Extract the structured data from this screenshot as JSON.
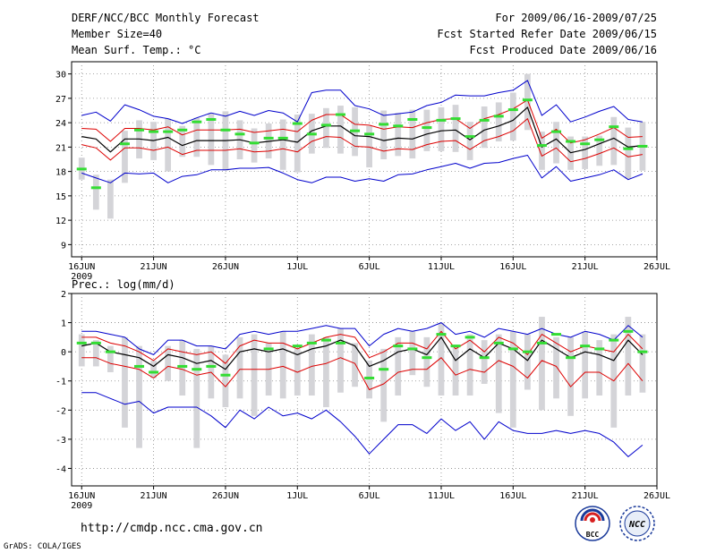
{
  "header": {
    "title": "DERF/NCC/BCC Monthly Forecast",
    "member_size": "Member Size=40",
    "variable": "Mean Surf. Temp.: °C",
    "for_range": "For 2009/06/16-2009/07/25",
    "fcst_started": "Fcst Started Refer Date 2009/06/15",
    "fcst_produced": "Fcst Produced Date 2009/06/16"
  },
  "footer": {
    "url": "http://cmdp.ncc.cma.gov.cn",
    "grads": "GrADS: COLA/IGES",
    "logo_bcc": "BCC",
    "logo_ncc": "NCC"
  },
  "colors": {
    "mean": "#000000",
    "spread": "#dd0000",
    "extremes": "#0000cc",
    "observed": "#33dd33",
    "box": "#d4d4d8",
    "grid": "#888888"
  },
  "chart_data": [
    {
      "type": "line",
      "title": "Mean Surf. Temp.: °C",
      "x": "days from 2009-06-16 (0..39)",
      "x_tick_labels": [
        "16JUN",
        "21JUN",
        "26JUN",
        "1JUL",
        "6JUL",
        "11JUL",
        "16JUL",
        "21JUL",
        "26JUL"
      ],
      "x_tick_days": [
        0,
        5,
        10,
        15,
        20,
        25,
        30,
        35,
        40
      ],
      "x_sub_label": "2009",
      "xlim": [
        -0.7,
        40
      ],
      "ylim": [
        7.5,
        31.5
      ],
      "y_ticks": [
        9,
        12,
        15,
        18,
        21,
        24,
        27,
        30
      ],
      "series": [
        {
          "name": "ensemble mean",
          "values": [
            22.3,
            22.0,
            20.4,
            22.0,
            22.0,
            21.8,
            22.2,
            21.2,
            21.8,
            21.8,
            21.8,
            21.9,
            21.5,
            21.7,
            21.9,
            21.6,
            23.0,
            23.6,
            23.6,
            22.4,
            22.3,
            21.8,
            22.1,
            22.0,
            22.6,
            23.0,
            23.1,
            21.9,
            23.1,
            23.6,
            24.3,
            25.9,
            21.0,
            22.0,
            20.3,
            20.7,
            21.4,
            22.1,
            21.0,
            21.2
          ]
        },
        {
          "name": "upper spread",
          "values": [
            23.3,
            23.2,
            21.7,
            23.3,
            23.3,
            23.1,
            23.5,
            22.5,
            23.1,
            23.1,
            23.1,
            23.2,
            22.8,
            23.0,
            23.2,
            22.9,
            24.3,
            25.0,
            25.0,
            23.8,
            23.7,
            23.2,
            23.5,
            23.4,
            24.0,
            24.4,
            24.5,
            23.3,
            24.5,
            25.0,
            25.7,
            26.8,
            22.1,
            23.2,
            21.5,
            21.9,
            22.6,
            23.4,
            22.2,
            22.3
          ]
        },
        {
          "name": "lower spread",
          "values": [
            21.3,
            20.9,
            19.4,
            20.9,
            20.9,
            20.6,
            21.0,
            20.1,
            20.6,
            20.6,
            20.6,
            20.8,
            20.4,
            20.5,
            20.8,
            20.4,
            21.7,
            22.3,
            22.2,
            21.1,
            21.0,
            20.5,
            20.8,
            20.7,
            21.3,
            21.7,
            21.8,
            20.7,
            21.8,
            22.3,
            23.0,
            24.5,
            19.9,
            20.9,
            19.2,
            19.6,
            20.2,
            20.9,
            19.8,
            20.1
          ]
        },
        {
          "name": "ensemble max",
          "values": [
            24.9,
            25.3,
            24.2,
            26.2,
            25.6,
            24.8,
            24.5,
            23.9,
            24.6,
            25.2,
            24.8,
            25.4,
            24.9,
            25.5,
            25.2,
            24.1,
            27.7,
            28.0,
            28.0,
            26.1,
            25.7,
            24.9,
            25.1,
            25.3,
            26.1,
            26.5,
            27.4,
            27.3,
            27.3,
            27.7,
            28.0,
            29.2,
            24.9,
            26.2,
            24.1,
            24.7,
            25.4,
            26.0,
            24.4,
            24.1
          ]
        },
        {
          "name": "ensemble min",
          "values": [
            17.8,
            17.2,
            16.6,
            17.8,
            17.7,
            17.8,
            16.6,
            17.4,
            17.6,
            18.2,
            18.2,
            18.4,
            18.4,
            18.5,
            17.8,
            17.0,
            16.6,
            17.3,
            17.3,
            16.8,
            17.1,
            16.8,
            17.6,
            17.7,
            18.2,
            18.6,
            19.0,
            18.4,
            19.0,
            19.1,
            19.6,
            20.0,
            17.2,
            18.6,
            16.8,
            17.2,
            17.6,
            18.2,
            17.0,
            17.7
          ]
        },
        {
          "name": "observed",
          "values": [
            18.3,
            16.0,
            null,
            21.4,
            23.1,
            22.9,
            22.9,
            23.1,
            24.1,
            24.4,
            23.1,
            22.6,
            21.5,
            22.1,
            22.1,
            23.9,
            22.6,
            23.7,
            25.0,
            23.0,
            22.6,
            23.8,
            23.6,
            24.4,
            23.4,
            24.3,
            24.5,
            22.3,
            24.3,
            24.8,
            25.6,
            26.8,
            21.2,
            22.9,
            21.7,
            21.4,
            21.9,
            23.5,
            20.8,
            21.1
          ]
        },
        {
          "name": "box top",
          "values": [
            19.7,
            17.6,
            17.0,
            23.0,
            24.3,
            24.1,
            24.5,
            23.6,
            24.6,
            25.2,
            25.4,
            24.3,
            23.3,
            23.9,
            24.4,
            25.0,
            25.1,
            25.8,
            26.1,
            25.9,
            23.6,
            25.5,
            25.2,
            25.6,
            25.6,
            25.9,
            26.2,
            24.1,
            26.0,
            26.5,
            27.7,
            30.0,
            22.9,
            24.1,
            22.3,
            22.3,
            22.4,
            24.7,
            23.4,
            24.1
          ]
        },
        {
          "name": "box bottom",
          "values": [
            17.0,
            13.3,
            12.2,
            16.6,
            19.6,
            19.4,
            18.0,
            19.8,
            19.8,
            18.8,
            18.1,
            19.5,
            19.1,
            19.6,
            18.2,
            17.9,
            20.2,
            20.9,
            20.2,
            19.9,
            18.5,
            19.5,
            19.9,
            19.6,
            20.5,
            20.5,
            20.4,
            19.4,
            20.9,
            21.7,
            21.8,
            23.1,
            18.2,
            19.0,
            18.2,
            18.3,
            18.7,
            18.8,
            17.1,
            18.1
          ]
        }
      ]
    },
    {
      "type": "line",
      "title": "Prec.: log(mm/d)",
      "x": "days from 2009-06-16 (0..39)",
      "x_tick_labels": [
        "16JUN",
        "21JUN",
        "26JUN",
        "1JUL",
        "6JUL",
        "11JUL",
        "16JUL",
        "21JUL",
        "26JUL"
      ],
      "x_tick_days": [
        0,
        5,
        10,
        15,
        20,
        25,
        30,
        35,
        40
      ],
      "x_sub_label": "2009",
      "xlim": [
        -0.7,
        40
      ],
      "ylim": [
        -4.6,
        2.0
      ],
      "y_ticks": [
        -4,
        -3,
        -2,
        -1,
        0,
        1,
        2
      ],
      "series": [
        {
          "name": "ensemble mean",
          "values": [
            0.2,
            0.3,
            0.0,
            -0.1,
            -0.2,
            -0.5,
            -0.1,
            -0.2,
            -0.4,
            -0.3,
            -0.6,
            0.0,
            0.1,
            0.0,
            0.1,
            -0.1,
            0.1,
            0.2,
            0.4,
            0.2,
            -0.5,
            -0.3,
            0.0,
            0.1,
            -0.1,
            0.5,
            -0.3,
            0.1,
            -0.2,
            0.3,
            0.1,
            -0.3,
            0.4,
            0.1,
            -0.2,
            0.0,
            -0.1,
            -0.3,
            0.4,
            -0.1
          ]
        },
        {
          "name": "upper spread",
          "values": [
            0.5,
            0.5,
            0.3,
            0.2,
            0.0,
            -0.3,
            0.1,
            0.0,
            -0.1,
            0.0,
            -0.4,
            0.2,
            0.4,
            0.3,
            0.3,
            0.1,
            0.3,
            0.5,
            0.6,
            0.5,
            -0.2,
            0.0,
            0.3,
            0.3,
            0.1,
            0.7,
            0.1,
            0.4,
            0.0,
            0.5,
            0.3,
            -0.1,
            0.6,
            0.3,
            0.0,
            0.2,
            0.1,
            0.0,
            0.6,
            0.1
          ]
        },
        {
          "name": "lower spread",
          "values": [
            -0.2,
            -0.2,
            -0.4,
            -0.5,
            -0.6,
            -0.9,
            -0.5,
            -0.6,
            -0.8,
            -0.7,
            -1.2,
            -0.6,
            -0.6,
            -0.6,
            -0.5,
            -0.7,
            -0.5,
            -0.4,
            -0.2,
            -0.4,
            -1.3,
            -1.1,
            -0.7,
            -0.6,
            -0.6,
            -0.2,
            -0.8,
            -0.6,
            -0.7,
            -0.3,
            -0.5,
            -0.9,
            -0.3,
            -0.5,
            -1.2,
            -0.7,
            -0.7,
            -1.0,
            -0.4,
            -1.0
          ]
        },
        {
          "name": "ensemble max",
          "values": [
            0.7,
            0.7,
            0.6,
            0.5,
            0.1,
            -0.1,
            0.4,
            0.4,
            0.2,
            0.2,
            0.1,
            0.6,
            0.7,
            0.6,
            0.7,
            0.7,
            0.8,
            0.9,
            0.8,
            0.8,
            0.2,
            0.6,
            0.8,
            0.7,
            0.8,
            1.0,
            0.6,
            0.7,
            0.5,
            0.8,
            0.7,
            0.6,
            0.8,
            0.6,
            0.5,
            0.7,
            0.6,
            0.4,
            0.9,
            0.5
          ]
        },
        {
          "name": "ensemble min",
          "values": [
            -1.4,
            -1.4,
            -1.6,
            -1.8,
            -1.7,
            -2.1,
            -1.9,
            -1.9,
            -1.9,
            -2.2,
            -2.6,
            -2.0,
            -2.3,
            -1.9,
            -2.2,
            -2.1,
            -2.3,
            -2.0,
            -2.4,
            -2.9,
            -3.5,
            -3.0,
            -2.5,
            -2.5,
            -2.8,
            -2.3,
            -2.7,
            -2.4,
            -3.0,
            -2.4,
            -2.7,
            -2.8,
            -2.8,
            -2.7,
            -2.8,
            -2.7,
            -2.8,
            -3.1,
            -3.6,
            -3.2
          ]
        },
        {
          "name": "observed",
          "values": [
            0.3,
            0.3,
            0.0,
            null,
            -0.5,
            -0.7,
            null,
            -0.5,
            -0.6,
            -0.5,
            -0.8,
            null,
            null,
            0.1,
            null,
            0.2,
            0.3,
            0.4,
            0.3,
            null,
            -0.9,
            -0.6,
            0.2,
            0.1,
            -0.2,
            0.6,
            0.2,
            0.5,
            -0.2,
            0.3,
            0.1,
            0.0,
            0.3,
            0.6,
            -0.2,
            0.2,
            0.1,
            0.4,
            0.7,
            0.0
          ]
        },
        {
          "name": "box top",
          "values": [
            0.6,
            0.4,
            0.2,
            0.5,
            0.2,
            -0.3,
            0.2,
            0.4,
            0.1,
            0.2,
            -0.1,
            0.5,
            0.6,
            0.3,
            0.7,
            0.1,
            0.6,
            0.5,
            0.8,
            0.3,
            -0.3,
            0.1,
            0.5,
            0.7,
            0.5,
            1.0,
            0.2,
            0.6,
            0.4,
            0.6,
            0.7,
            0.6,
            1.2,
            0.5,
            0.5,
            0.7,
            0.4,
            0.6,
            1.2,
            0.6
          ]
        },
        {
          "name": "box bottom",
          "values": [
            -0.5,
            -0.5,
            -0.7,
            -2.6,
            -3.3,
            -0.9,
            -1.0,
            -1.5,
            -3.3,
            -1.6,
            -1.9,
            -1.6,
            -2.2,
            -1.5,
            -1.6,
            -1.5,
            -1.5,
            -1.9,
            -1.4,
            -1.2,
            -1.6,
            -2.4,
            -1.5,
            -0.8,
            -1.2,
            -1.5,
            -1.5,
            -1.5,
            -1.1,
            -2.1,
            -2.6,
            -1.3,
            -2.0,
            -1.6,
            -2.2,
            -1.6,
            -1.5,
            -2.6,
            -1.5,
            -1.4
          ]
        }
      ]
    }
  ]
}
